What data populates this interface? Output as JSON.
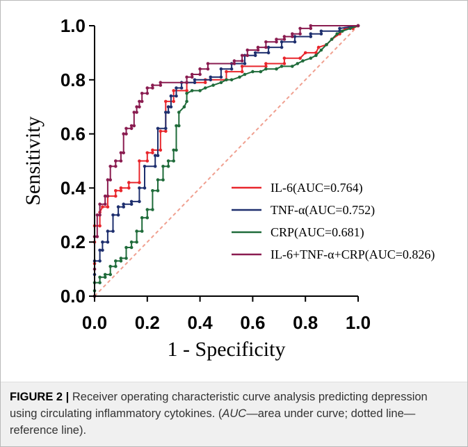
{
  "chart_data": {
    "type": "line",
    "xlabel": "1 - Specificity",
    "ylabel": "Sensitivity",
    "xlim": [
      0,
      1
    ],
    "ylim": [
      0,
      1
    ],
    "x_ticks": [
      "0.0",
      "0.2",
      "0.4",
      "0.6",
      "0.8",
      "1.0"
    ],
    "y_ticks": [
      "0.0",
      "0.2",
      "0.4",
      "0.6",
      "0.8",
      "1.0"
    ],
    "grid": false,
    "legend_position": "bottom-right",
    "reference_line": {
      "style": "dotted",
      "color": "#f0a090",
      "from": [
        0,
        0
      ],
      "to": [
        1,
        1
      ]
    },
    "series": [
      {
        "name": "IL-6(AUC=0.764)",
        "color": "#e8262c",
        "points": [
          [
            0,
            0
          ],
          [
            0,
            0.12
          ],
          [
            0,
            0.2
          ],
          [
            0,
            0.26
          ],
          [
            0.02,
            0.26
          ],
          [
            0.02,
            0.31
          ],
          [
            0.03,
            0.33
          ],
          [
            0.05,
            0.33
          ],
          [
            0.05,
            0.37
          ],
          [
            0.08,
            0.37
          ],
          [
            0.08,
            0.39
          ],
          [
            0.1,
            0.39
          ],
          [
            0.1,
            0.4
          ],
          [
            0.13,
            0.4
          ],
          [
            0.13,
            0.42
          ],
          [
            0.17,
            0.42
          ],
          [
            0.17,
            0.5
          ],
          [
            0.2,
            0.5
          ],
          [
            0.2,
            0.53
          ],
          [
            0.22,
            0.53
          ],
          [
            0.22,
            0.54
          ],
          [
            0.25,
            0.54
          ],
          [
            0.25,
            0.61
          ],
          [
            0.27,
            0.61
          ],
          [
            0.27,
            0.72
          ],
          [
            0.3,
            0.72
          ],
          [
            0.3,
            0.76
          ],
          [
            0.35,
            0.76
          ],
          [
            0.35,
            0.79
          ],
          [
            0.42,
            0.79
          ],
          [
            0.42,
            0.8
          ],
          [
            0.5,
            0.8
          ],
          [
            0.5,
            0.83
          ],
          [
            0.56,
            0.83
          ],
          [
            0.56,
            0.85
          ],
          [
            0.65,
            0.85
          ],
          [
            0.65,
            0.86
          ],
          [
            0.72,
            0.86
          ],
          [
            0.72,
            0.88
          ],
          [
            0.78,
            0.88
          ],
          [
            0.8,
            0.9
          ],
          [
            0.84,
            0.9
          ],
          [
            0.85,
            0.92
          ],
          [
            0.88,
            0.93
          ],
          [
            0.9,
            0.95
          ],
          [
            0.93,
            0.97
          ],
          [
            0.95,
            0.99
          ],
          [
            0.98,
            0.99
          ],
          [
            1,
            1
          ]
        ]
      },
      {
        "name": "TNF-α(AUC=0.752)",
        "color": "#1e2f6e",
        "points": [
          [
            0,
            0
          ],
          [
            0,
            0.08
          ],
          [
            0,
            0.13
          ],
          [
            0.02,
            0.13
          ],
          [
            0.02,
            0.17
          ],
          [
            0.03,
            0.17
          ],
          [
            0.03,
            0.2
          ],
          [
            0.05,
            0.2
          ],
          [
            0.05,
            0.24
          ],
          [
            0.07,
            0.24
          ],
          [
            0.07,
            0.3
          ],
          [
            0.09,
            0.3
          ],
          [
            0.09,
            0.33
          ],
          [
            0.11,
            0.33
          ],
          [
            0.11,
            0.34
          ],
          [
            0.14,
            0.34
          ],
          [
            0.14,
            0.35
          ],
          [
            0.17,
            0.35
          ],
          [
            0.17,
            0.4
          ],
          [
            0.19,
            0.4
          ],
          [
            0.19,
            0.48
          ],
          [
            0.23,
            0.48
          ],
          [
            0.23,
            0.52
          ],
          [
            0.24,
            0.52
          ],
          [
            0.24,
            0.62
          ],
          [
            0.27,
            0.62
          ],
          [
            0.27,
            0.68
          ],
          [
            0.28,
            0.68
          ],
          [
            0.28,
            0.7
          ],
          [
            0.29,
            0.7
          ],
          [
            0.29,
            0.74
          ],
          [
            0.31,
            0.74
          ],
          [
            0.31,
            0.77
          ],
          [
            0.33,
            0.77
          ],
          [
            0.33,
            0.79
          ],
          [
            0.38,
            0.79
          ],
          [
            0.38,
            0.8
          ],
          [
            0.44,
            0.8
          ],
          [
            0.44,
            0.81
          ],
          [
            0.48,
            0.81
          ],
          [
            0.48,
            0.84
          ],
          [
            0.52,
            0.84
          ],
          [
            0.52,
            0.86
          ],
          [
            0.57,
            0.86
          ],
          [
            0.57,
            0.89
          ],
          [
            0.61,
            0.89
          ],
          [
            0.61,
            0.9
          ],
          [
            0.66,
            0.9
          ],
          [
            0.66,
            0.92
          ],
          [
            0.71,
            0.92
          ],
          [
            0.71,
            0.94
          ],
          [
            0.76,
            0.94
          ],
          [
            0.76,
            0.96
          ],
          [
            0.82,
            0.96
          ],
          [
            0.82,
            0.97
          ],
          [
            0.86,
            0.97
          ],
          [
            0.86,
            0.98
          ],
          [
            0.93,
            0.98
          ],
          [
            0.93,
            0.99
          ],
          [
            1,
            1
          ]
        ]
      },
      {
        "name": "CRP(AUC=0.681)",
        "color": "#1f6b3a",
        "points": [
          [
            0,
            0
          ],
          [
            0,
            0.02
          ],
          [
            0,
            0.05
          ],
          [
            0.02,
            0.05
          ],
          [
            0.02,
            0.07
          ],
          [
            0.04,
            0.07
          ],
          [
            0.04,
            0.08
          ],
          [
            0.06,
            0.08
          ],
          [
            0.06,
            0.11
          ],
          [
            0.08,
            0.11
          ],
          [
            0.08,
            0.13
          ],
          [
            0.1,
            0.13
          ],
          [
            0.1,
            0.14
          ],
          [
            0.12,
            0.14
          ],
          [
            0.12,
            0.18
          ],
          [
            0.14,
            0.18
          ],
          [
            0.14,
            0.2
          ],
          [
            0.16,
            0.2
          ],
          [
            0.16,
            0.24
          ],
          [
            0.18,
            0.24
          ],
          [
            0.18,
            0.29
          ],
          [
            0.2,
            0.29
          ],
          [
            0.2,
            0.32
          ],
          [
            0.22,
            0.32
          ],
          [
            0.22,
            0.39
          ],
          [
            0.24,
            0.39
          ],
          [
            0.24,
            0.43
          ],
          [
            0.26,
            0.43
          ],
          [
            0.26,
            0.48
          ],
          [
            0.28,
            0.48
          ],
          [
            0.28,
            0.5
          ],
          [
            0.3,
            0.5
          ],
          [
            0.3,
            0.54
          ],
          [
            0.31,
            0.54
          ],
          [
            0.31,
            0.63
          ],
          [
            0.32,
            0.63
          ],
          [
            0.32,
            0.68
          ],
          [
            0.34,
            0.7
          ],
          [
            0.35,
            0.72
          ],
          [
            0.35,
            0.75
          ],
          [
            0.37,
            0.76
          ],
          [
            0.4,
            0.76
          ],
          [
            0.42,
            0.77
          ],
          [
            0.45,
            0.78
          ],
          [
            0.48,
            0.79
          ],
          [
            0.5,
            0.8
          ],
          [
            0.52,
            0.8
          ],
          [
            0.55,
            0.81
          ],
          [
            0.57,
            0.82
          ],
          [
            0.6,
            0.83
          ],
          [
            0.63,
            0.83
          ],
          [
            0.65,
            0.84
          ],
          [
            0.69,
            0.84
          ],
          [
            0.71,
            0.85
          ],
          [
            0.75,
            0.85
          ],
          [
            0.77,
            0.86
          ],
          [
            0.79,
            0.87
          ],
          [
            0.82,
            0.88
          ],
          [
            0.84,
            0.89
          ],
          [
            0.86,
            0.91
          ],
          [
            0.88,
            0.93
          ],
          [
            0.9,
            0.95
          ],
          [
            0.92,
            0.97
          ],
          [
            0.94,
            0.98
          ],
          [
            0.97,
            0.99
          ],
          [
            1,
            1
          ]
        ]
      },
      {
        "name": "IL-6+TNF-α+CRP(AUC=0.826)",
        "color": "#8a1c50",
        "points": [
          [
            0,
            0
          ],
          [
            0,
            0.1
          ],
          [
            0,
            0.22
          ],
          [
            0.01,
            0.22
          ],
          [
            0.01,
            0.3
          ],
          [
            0.02,
            0.3
          ],
          [
            0.02,
            0.34
          ],
          [
            0.04,
            0.34
          ],
          [
            0.04,
            0.37
          ],
          [
            0.05,
            0.37
          ],
          [
            0.05,
            0.43
          ],
          [
            0.06,
            0.43
          ],
          [
            0.06,
            0.48
          ],
          [
            0.08,
            0.48
          ],
          [
            0.08,
            0.5
          ],
          [
            0.1,
            0.5
          ],
          [
            0.1,
            0.53
          ],
          [
            0.11,
            0.53
          ],
          [
            0.11,
            0.6
          ],
          [
            0.12,
            0.6
          ],
          [
            0.12,
            0.62
          ],
          [
            0.14,
            0.62
          ],
          [
            0.14,
            0.63
          ],
          [
            0.15,
            0.63
          ],
          [
            0.15,
            0.68
          ],
          [
            0.16,
            0.68
          ],
          [
            0.16,
            0.7
          ],
          [
            0.17,
            0.7
          ],
          [
            0.17,
            0.72
          ],
          [
            0.18,
            0.72
          ],
          [
            0.18,
            0.75
          ],
          [
            0.2,
            0.75
          ],
          [
            0.2,
            0.77
          ],
          [
            0.22,
            0.77
          ],
          [
            0.22,
            0.78
          ],
          [
            0.25,
            0.78
          ],
          [
            0.25,
            0.79
          ],
          [
            0.35,
            0.79
          ],
          [
            0.35,
            0.81
          ],
          [
            0.37,
            0.81
          ],
          [
            0.37,
            0.82
          ],
          [
            0.4,
            0.82
          ],
          [
            0.4,
            0.84
          ],
          [
            0.43,
            0.84
          ],
          [
            0.43,
            0.86
          ],
          [
            0.53,
            0.86
          ],
          [
            0.53,
            0.87
          ],
          [
            0.56,
            0.87
          ],
          [
            0.56,
            0.89
          ],
          [
            0.58,
            0.89
          ],
          [
            0.58,
            0.91
          ],
          [
            0.62,
            0.91
          ],
          [
            0.62,
            0.92
          ],
          [
            0.65,
            0.92
          ],
          [
            0.65,
            0.94
          ],
          [
            0.69,
            0.94
          ],
          [
            0.69,
            0.95
          ],
          [
            0.72,
            0.95
          ],
          [
            0.72,
            0.96
          ],
          [
            0.75,
            0.96
          ],
          [
            0.75,
            0.97
          ],
          [
            0.78,
            0.97
          ],
          [
            0.78,
            0.99
          ],
          [
            0.82,
            0.99
          ],
          [
            0.82,
            1
          ],
          [
            1,
            1
          ]
        ]
      }
    ]
  },
  "caption": {
    "label": "FIGURE 2 |",
    "text": " Receiver operating characteristic curve analysis predicting depression using circulating inflammatory cytokines. (",
    "auc_abbr": "AUC",
    "auc_def": "—area under curve; dotted line—reference line)."
  }
}
